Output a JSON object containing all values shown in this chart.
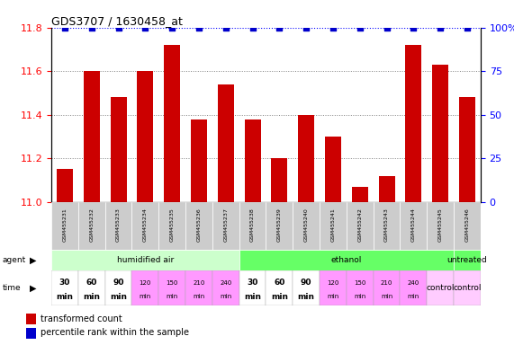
{
  "title": "GDS3707 / 1630458_at",
  "samples": [
    "GSM455231",
    "GSM455232",
    "GSM455233",
    "GSM455234",
    "GSM455235",
    "GSM455236",
    "GSM455237",
    "GSM455238",
    "GSM455239",
    "GSM455240",
    "GSM455241",
    "GSM455242",
    "GSM455243",
    "GSM455244",
    "GSM455245",
    "GSM455246"
  ],
  "bar_values": [
    11.15,
    11.6,
    11.48,
    11.6,
    11.72,
    11.38,
    11.54,
    11.38,
    11.2,
    11.4,
    11.3,
    11.07,
    11.12,
    11.72,
    11.63,
    11.48
  ],
  "percentile_values": [
    100,
    100,
    100,
    100,
    100,
    100,
    100,
    100,
    100,
    100,
    100,
    100,
    100,
    100,
    100,
    100
  ],
  "bar_color": "#cc0000",
  "percentile_color": "#0000cc",
  "ylim_left": [
    11.0,
    11.8
  ],
  "ylim_right": [
    0,
    100
  ],
  "yticks_left": [
    11.0,
    11.2,
    11.4,
    11.6,
    11.8
  ],
  "yticks_right": [
    0,
    25,
    50,
    75,
    100
  ],
  "grid_values": [
    11.2,
    11.4,
    11.6
  ],
  "agent_groups": [
    {
      "label": "humidified air",
      "start": 0,
      "end": 7,
      "color": "#ccffcc"
    },
    {
      "label": "ethanol",
      "start": 7,
      "end": 15,
      "color": "#66ff66"
    },
    {
      "label": "untreated",
      "start": 15,
      "end": 16,
      "color": "#66ff66"
    }
  ],
  "time_labels": [
    "30\nmin",
    "60\nmin",
    "90\nmin",
    "120\nmin",
    "150\nmin",
    "210\nmin",
    "240\nmin",
    "30\nmin",
    "60\nmin",
    "90\nmin",
    "120\nmin",
    "150\nmin",
    "210\nmin",
    "240\nmin",
    "control",
    "control"
  ],
  "time_colors": [
    "#ffffff",
    "#ffffff",
    "#ffffff",
    "#ff99ff",
    "#ff99ff",
    "#ff99ff",
    "#ff99ff",
    "#ffffff",
    "#ffffff",
    "#ffffff",
    "#ff99ff",
    "#ff99ff",
    "#ff99ff",
    "#ff99ff",
    "#ffccff",
    "#ffccff"
  ],
  "legend_bar": "transformed count",
  "legend_percentile": "percentile rank within the sample",
  "bar_width": 0.6
}
